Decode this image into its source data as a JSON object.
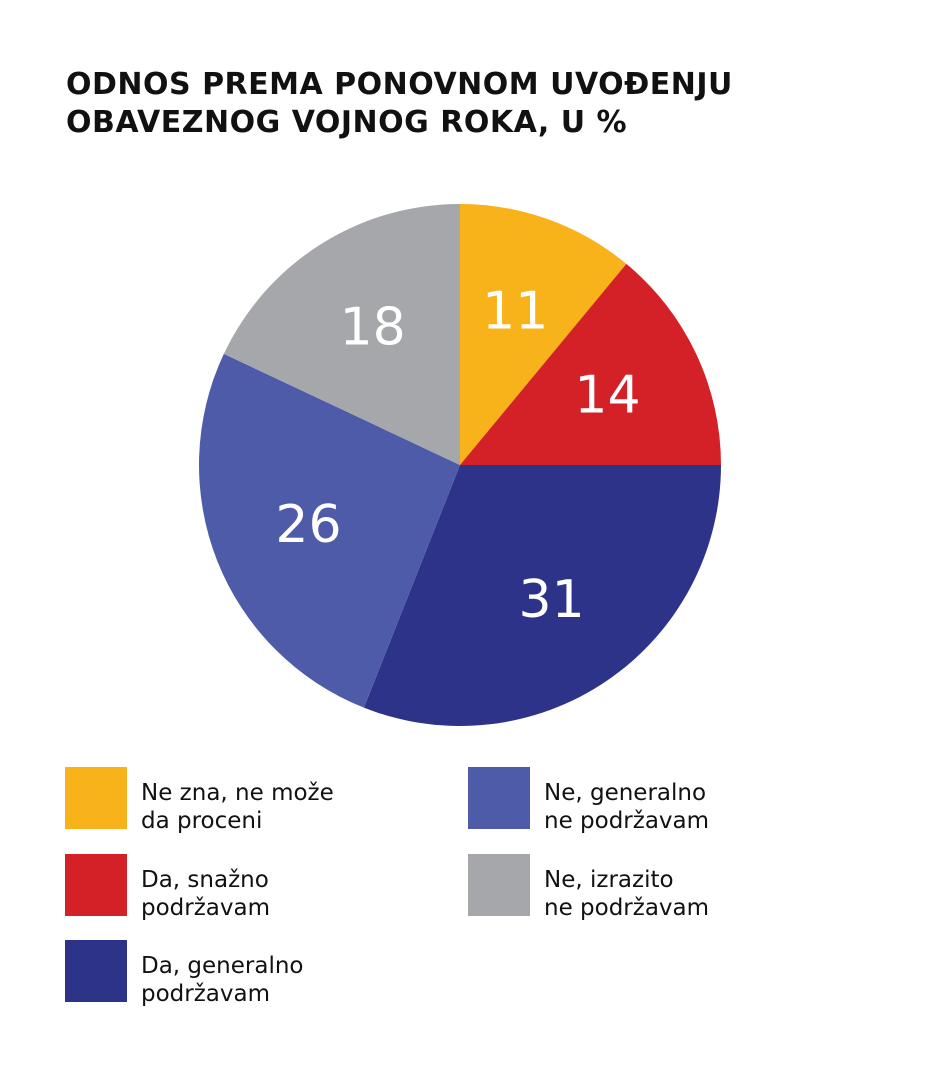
{
  "title": {
    "line1": "ODNOS PREMA PONOVNOM UVOĐENJU",
    "line2": "OBAVEZNOG VOJNOG ROKA, U %"
  },
  "chart_data": {
    "type": "pie",
    "title": "ODNOS PREMA PONOVNOM UVOĐENJU OBAVEZNOG VOJNOG ROKA, U %",
    "unit": "%",
    "start": "12 o'clock",
    "direction": "clockwise",
    "slices": [
      {
        "name": "Ne zna, ne može da proceni",
        "value": 11,
        "label": "11",
        "color": "#f9b31a"
      },
      {
        "name": "Da, snažno podržavam",
        "value": 14,
        "label": "14",
        "color": "#d42127"
      },
      {
        "name": "Da, generalno podržavam",
        "value": 31,
        "label": "31",
        "color": "#2e338a"
      },
      {
        "name": "Ne, generalno ne podržavam",
        "value": 26,
        "label": "26",
        "color": "#4e5ba8"
      },
      {
        "name": "Ne, izrazito ne podržavam",
        "value": 18,
        "label": "18",
        "color": "#a6a7ab"
      }
    ],
    "label_color": "#ffffff",
    "legend_placement": "bottom"
  },
  "legend": [
    {
      "line1": "Ne zna, ne može",
      "line2": "da proceni",
      "color": "#f9b31a"
    },
    {
      "line1": "Da, snažno",
      "line2": "podržavam",
      "color": "#d42127"
    },
    {
      "line1": "Da, generalno",
      "line2": "podržavam",
      "color": "#2e338a"
    },
    {
      "line1": "Ne, generalno",
      "line2": "ne podržavam",
      "color": "#4e5ba8"
    },
    {
      "line1": "Ne, izrazito",
      "line2": "ne podržavam",
      "color": "#a6a7ab"
    }
  ]
}
